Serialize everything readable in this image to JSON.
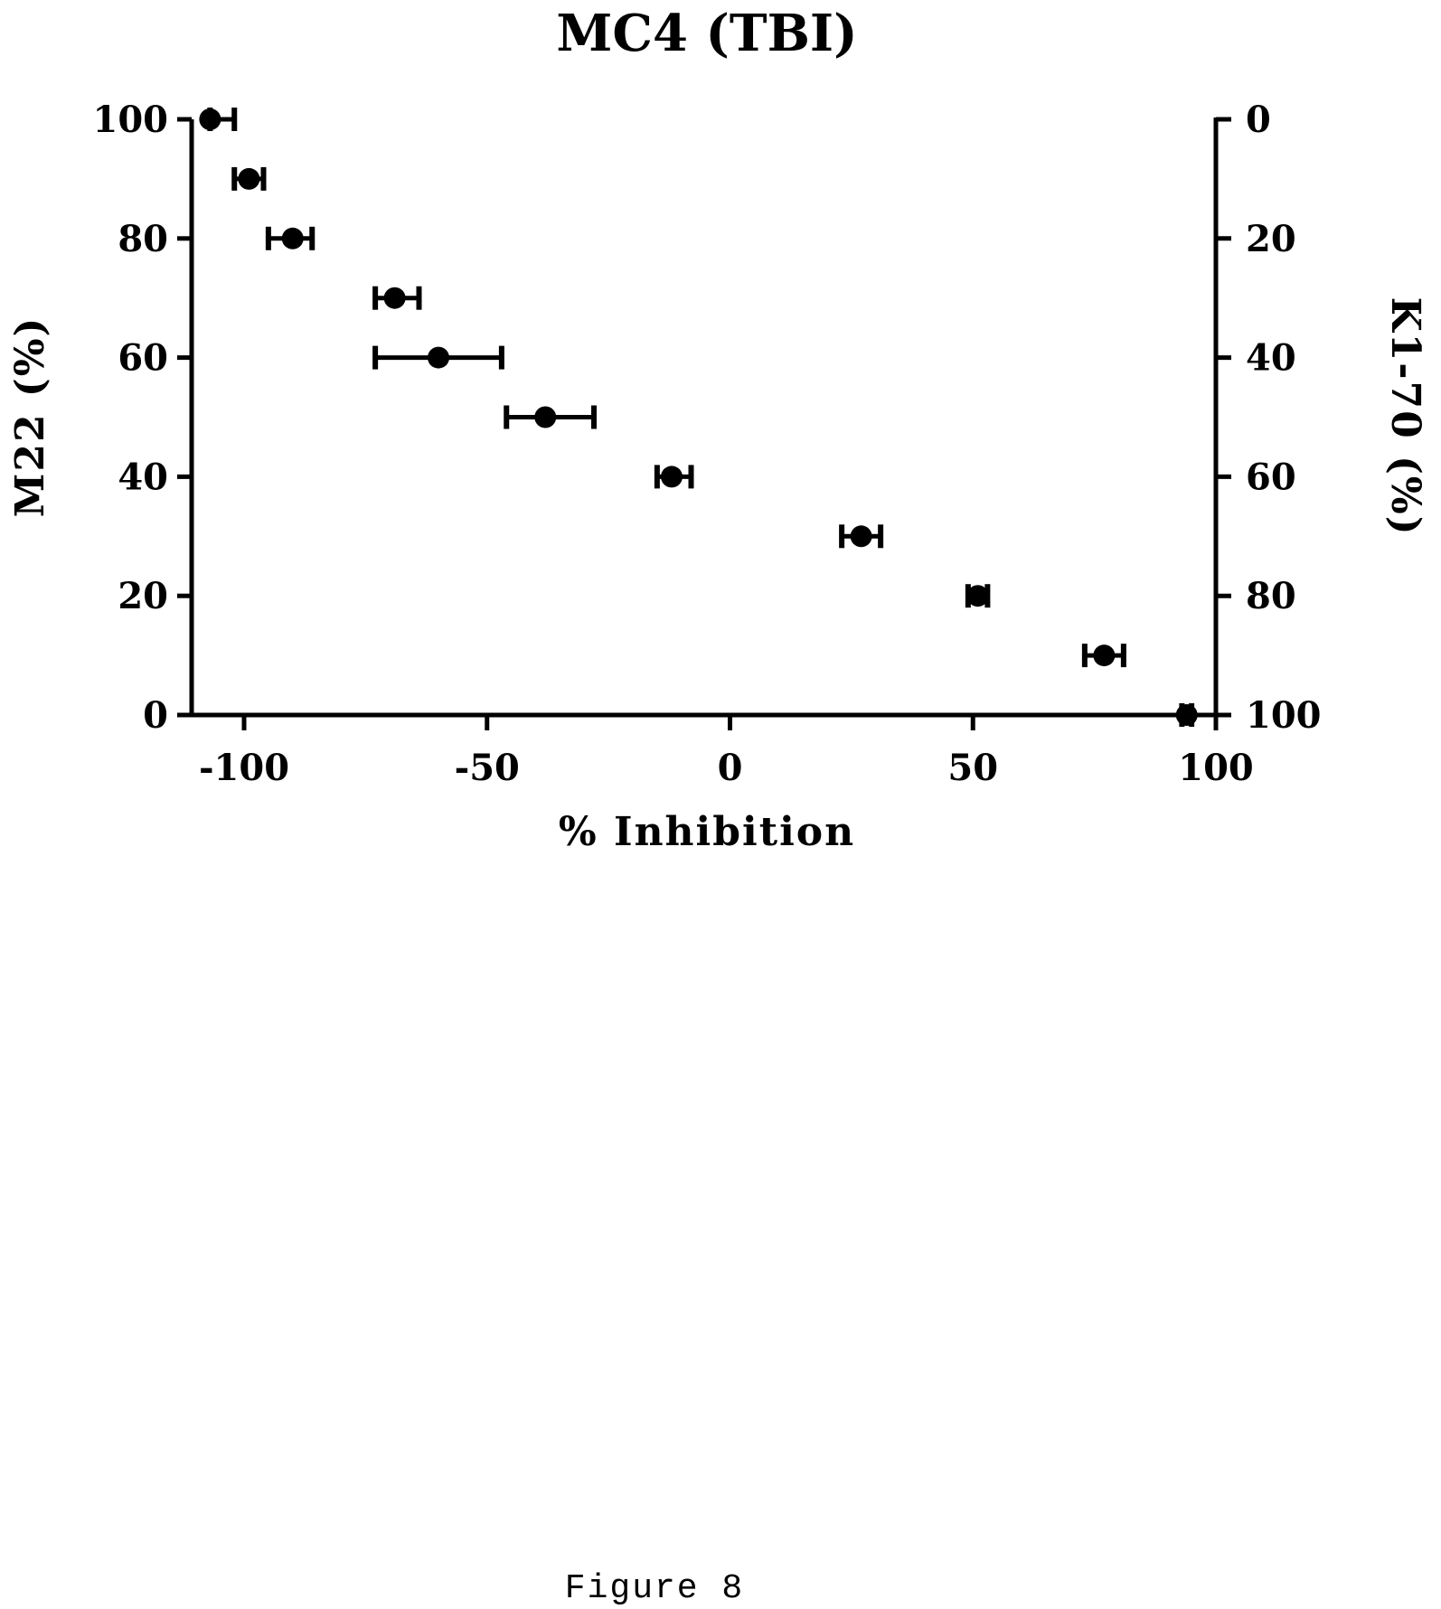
{
  "chart_data": {
    "type": "scatter",
    "title": "MC4 (TBI)",
    "xlabel": "% Inhibition",
    "ylabel": "M22 (%)",
    "y2label": "K1-70 (%)",
    "xlim": [
      -110,
      100
    ],
    "ylim": [
      0,
      100
    ],
    "y2lim": [
      100,
      0
    ],
    "x_ticks": [
      "-100",
      "-50",
      "0",
      "50",
      "100"
    ],
    "y_ticks": [
      "0",
      "20",
      "40",
      "60",
      "80",
      "100"
    ],
    "y2_ticks": [
      "100",
      "80",
      "60",
      "40",
      "20",
      "0"
    ],
    "grid": false,
    "series": [
      {
        "points": [
          {
            "x": -107,
            "y": 100,
            "xerr_low": -107,
            "xerr_high": -102
          },
          {
            "x": -99,
            "y": 90,
            "xerr_low": -102,
            "xerr_high": -96
          },
          {
            "x": -90,
            "y": 80,
            "xerr_low": -95,
            "xerr_high": -86
          },
          {
            "x": -69,
            "y": 70,
            "xerr_low": -73,
            "xerr_high": -64
          },
          {
            "x": -60,
            "y": 60,
            "xerr_low": -73,
            "xerr_high": -47
          },
          {
            "x": -38,
            "y": 50,
            "xerr_low": -46,
            "xerr_high": -28
          },
          {
            "x": -12,
            "y": 40,
            "xerr_low": -15,
            "xerr_high": -8
          },
          {
            "x": 27,
            "y": 30,
            "xerr_low": 23,
            "xerr_high": 31
          },
          {
            "x": 51,
            "y": 20,
            "xerr_low": 49,
            "xerr_high": 53
          },
          {
            "x": 77,
            "y": 10,
            "xerr_low": 73,
            "xerr_high": 81
          },
          {
            "x": 94,
            "y": 0,
            "xerr_low": 93,
            "xerr_high": 95
          }
        ]
      }
    ]
  },
  "caption": "Figure 8"
}
